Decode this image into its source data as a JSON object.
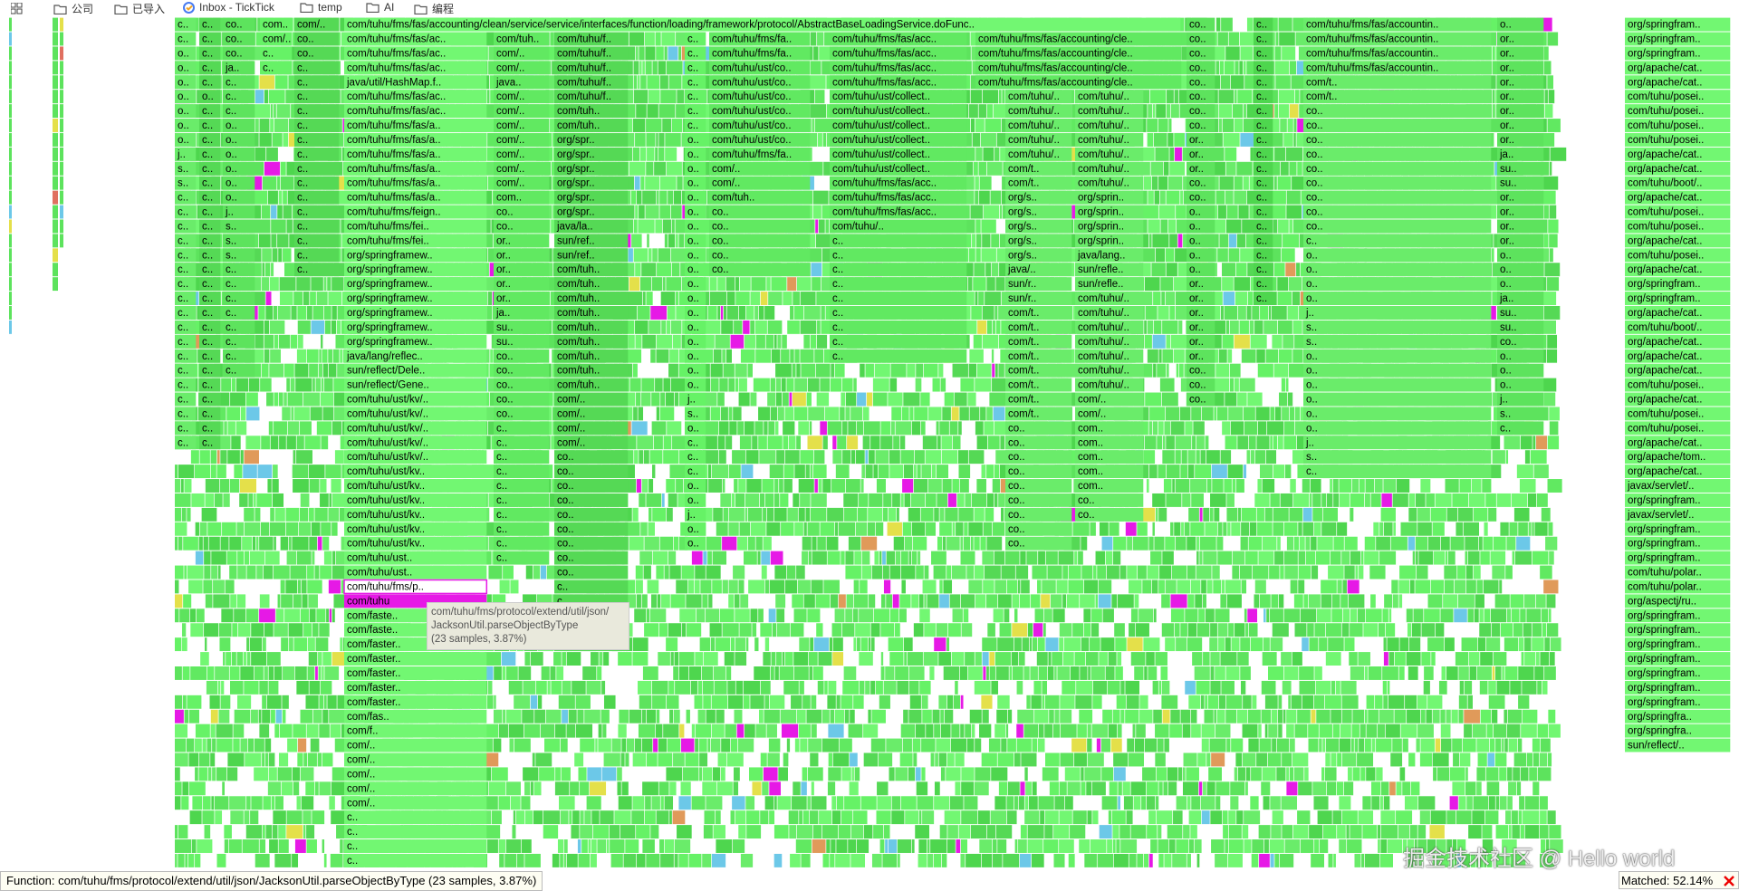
{
  "bookmarks": [
    "公司",
    "已导入",
    "Inbox - TickTick",
    "temp",
    "AI",
    "编程"
  ],
  "flame": {
    "root_frame": "com/tuhu/fms/fas/accounting/clean/service/service/interfaces/function/loading/framework/protocol/AbstractBaseLoadingService.doFunc..",
    "columns": [
      {
        "frames": [
          "c..",
          "c..",
          "o..",
          "o..",
          "o..",
          "o..",
          "o..",
          "o..",
          "o..",
          "j..",
          "s..",
          "s..",
          "c..",
          "c..",
          "c..",
          "c..",
          "c..",
          "c..",
          "c..",
          "c..",
          "c..",
          "c..",
          "c..",
          "c..",
          "c..",
          "c..",
          "c..",
          "c..",
          "c..",
          "c.."
        ]
      },
      {
        "frames": [
          "c..",
          "c..",
          "c..",
          "c..",
          "c..",
          "o..",
          "c..",
          "c..",
          "c..",
          "c..",
          "c..",
          "c..",
          "c..",
          "c..",
          "c..",
          "c..",
          "c..",
          "c..",
          "c..",
          "c..",
          "c..",
          "c..",
          "c..",
          "c..",
          "c..",
          "c..",
          "c..",
          "c..",
          "c..",
          "c.."
        ]
      },
      {
        "frames": [
          "co..",
          "co..",
          "co..",
          "ja..",
          "c..",
          "c..",
          "c..",
          "o..",
          "o..",
          "o..",
          "o..",
          "o..",
          "o..",
          "j..",
          "s..",
          "s..",
          "s..",
          "c..",
          "c..",
          "c..",
          "c..",
          "c..",
          "c..",
          "c..",
          "c.."
        ]
      },
      {
        "frames": [
          "com..",
          "com/..",
          "c..",
          "c.."
        ]
      },
      {
        "frames": [
          "com/..",
          "co..",
          "co..",
          "c..",
          "c..",
          "c..",
          "c..",
          "c..",
          "c..",
          "c..",
          "c..",
          "c..",
          "c..",
          "c..",
          "c..",
          "c..",
          "c..",
          "c.."
        ]
      },
      {
        "frames": [
          "com/tuhu/fms/fas/ac..",
          "com/tuhu/fms/fas/ac..",
          "com/tuhu/fms/fas/ac..",
          "java/util/HashMap.f..",
          "com/tuhu/fms/fas/ac..",
          "com/tuhu/fms/fas/ac..",
          "com/tuhu/fms/fas/a..",
          "com/tuhu/fms/fas/a..",
          "com/tuhu/fms/fas/a..",
          "com/tuhu/fms/fas/a..",
          "com/tuhu/fms/fas/a..",
          "com/tuhu/fms/fas/a..",
          "com/tuhu/fms/feign..",
          "com/tuhu/fms/fei..",
          "com/tuhu/fms/fei..",
          "org/springframew..",
          "org/springframew..",
          "org/springframew..",
          "org/springframew..",
          "org/springframew..",
          "org/springframew..",
          "org/springframew..",
          "java/lang/reflec..",
          "sun/reflect/Dele..",
          "sun/reflect/Gene..",
          "com/tuhu/ust/kv/..",
          "com/tuhu/ust/kv/..",
          "com/tuhu/ust/kv/..",
          "com/tuhu/ust/kv/..",
          "com/tuhu/ust/kv/..",
          "com/tuhu/ust/kv..",
          "com/tuhu/ust/kv..",
          "com/tuhu/ust/kv..",
          "com/tuhu/ust/kv..",
          "com/tuhu/ust/kv..",
          "com/tuhu/ust/kv..",
          "com/tuhu/ust..",
          "com/tuhu/ust..",
          "com/tuhu/fms/p..",
          "com/tuhu",
          "com/faste..",
          "com/faste..",
          "com/faster..",
          "com/faster..",
          "com/faster..",
          "com/faster..",
          "com/faster..",
          "com/fas..",
          "com/f..",
          "com/..",
          "com/..",
          "com/..",
          "com/..",
          "com/..",
          "c..",
          "c..",
          "c..",
          "c.."
        ]
      },
      {
        "frames": [
          "com/tuh..",
          "com/..",
          "com/..",
          "java..",
          "com/..",
          "com/..",
          "com/..",
          "com/..",
          "com/..",
          "com/..",
          "com/..",
          "com..",
          "co..",
          "co..",
          "or..",
          "or..",
          "or..",
          "or..",
          "or..",
          "ja..",
          "su..",
          "su..",
          "co..",
          "co..",
          "co..",
          "co..",
          "co..",
          "c..",
          "c..",
          "c..",
          "c..",
          "c..",
          "c..",
          "c..",
          "c..",
          "c..",
          "c.."
        ]
      },
      {
        "frames": [
          "com/tuhu/f..",
          "com/tuhu/f..",
          "com/tuhu/f..",
          "com/tuhu/f..",
          "com/tuhu/f..",
          "com/tuh..",
          "com/tuh..",
          "org/spr..",
          "org/spr..",
          "org/spr..",
          "org/spr..",
          "org/spr..",
          "org/spr..",
          "java/la..",
          "sun/ref..",
          "sun/ref..",
          "com/tuh..",
          "com/tuh..",
          "com/tuh..",
          "com/tuh..",
          "com/tuh..",
          "com/tuh..",
          "com/tuh..",
          "com/tuh..",
          "com/tuh..",
          "com/..",
          "com/..",
          "com/..",
          "com/..",
          "co..",
          "co..",
          "co..",
          "co..",
          "co..",
          "co..",
          "co..",
          "co..",
          "co..",
          "c..",
          "c..",
          "c..",
          "c..",
          "c.."
        ]
      },
      {
        "frames": [
          "c..",
          "c..",
          "c..",
          "c..",
          "c..",
          "c..",
          "c..",
          "o..",
          "o..",
          "o..",
          "o..",
          "o..",
          "o..",
          "o..",
          "o..",
          "o..",
          "o..",
          "o..",
          "o..",
          "o..",
          "o..",
          "o..",
          "o..",
          "o..",
          "o..",
          "j..",
          "s..",
          "o..",
          "c..",
          "c..",
          "c..",
          "o..",
          "o..",
          "j..",
          "o..",
          "o.."
        ]
      },
      {
        "frames": [
          "com/tuhu/fms/fa..",
          "com/tuhu/fms/fa..",
          "com/tuhu/ust/co..",
          "com/tuhu/ust/co..",
          "com/tuhu/ust/co..",
          "com/tuhu/ust/co..",
          "com/tuhu/ust/co..",
          "com/tuhu/ust/co..",
          "com/tuhu/fms/fa..",
          "com/..",
          "com/..",
          "com/tuh..",
          "co..",
          "co..",
          "co..",
          "co..",
          "co.."
        ]
      },
      {
        "frames": [
          "com/tuhu/fms/fas/acc..",
          "com/tuhu/fms/fas/acc..",
          "com/tuhu/fms/fas/acc..",
          "com/tuhu/fms/fas/acc..",
          "com/tuhu/ust/collect..",
          "com/tuhu/ust/collect..",
          "com/tuhu/ust/collect..",
          "com/tuhu/ust/collect..",
          "com/tuhu/ust/collect..",
          "com/tuhu/ust/collect..",
          "com/tuhu/fms/fas/acc..",
          "com/tuhu/fms/fas/acc..",
          "com/tuhu/fms/fas/acc..",
          "com/tuhu/..",
          "c..",
          "c..",
          "c..",
          "c..",
          "c..",
          "c..",
          "c..",
          "c..",
          "c.."
        ]
      },
      {
        "frames": [
          "com/tuhu/fms/fas/accounting/cle..",
          "com/tuhu/fms/fas/accounting/cle..",
          "com/tuhu/fms/fas/accounting/cle..",
          "com/tuhu/fms/fas/accounting/cle.."
        ]
      },
      {
        "frames": [
          "com/tuhu/..",
          "com/tuhu/..",
          "com/tuhu/..",
          "com/tuhu/..",
          "com/tuhu/..",
          "com/t..",
          "com/t..",
          "org/s..",
          "org/s..",
          "org/s..",
          "org/s..",
          "org/s..",
          "java/..",
          "sun/r..",
          "sun/r..",
          "com/t..",
          "com/t..",
          "com/t..",
          "com/t..",
          "com/t..",
          "com/t..",
          "com/t..",
          "com/t..",
          "co..",
          "co..",
          "co..",
          "co..",
          "co..",
          "co..",
          "co..",
          "co..",
          "co.."
        ]
      },
      {
        "frames": [
          "com/tuhu/..",
          "com/tuhu/..",
          "com/tuhu/..",
          "com/tuhu/..",
          "com/tuhu/..",
          "com/tuhu/..",
          "com/tuhu/..",
          "org/sprin..",
          "org/sprin..",
          "org/sprin..",
          "org/sprin..",
          "java/lang..",
          "sun/refle..",
          "sun/refle..",
          "com/tuhu/..",
          "com/tuhu/..",
          "com/tuhu/..",
          "com/tuhu/..",
          "com/tuhu/..",
          "com/tuhu/..",
          "com/tuhu/..",
          "com/..",
          "com/..",
          "com..",
          "com..",
          "com..",
          "com..",
          "com..",
          "co..",
          "co.."
        ]
      },
      {
        "frames": [
          "co..",
          "co..",
          "co..",
          "co..",
          "co..",
          "co..",
          "co..",
          "co..",
          "or..",
          "or..",
          "or..",
          "co..",
          "co..",
          "o..",
          "o..",
          "o..",
          "o..",
          "o..",
          "or..",
          "or..",
          "or..",
          "or..",
          "or..",
          "or..",
          "co..",
          "co..",
          "co.."
        ]
      },
      {
        "frames": [
          "c..",
          "c..",
          "c..",
          "c..",
          "c..",
          "c..",
          "c..",
          "c..",
          "c..",
          "c..",
          "c..",
          "c..",
          "c..",
          "c..",
          "c..",
          "c..",
          "c..",
          "c..",
          "c..",
          "c.."
        ]
      },
      {
        "frames": [
          "com/tuhu/fms/fas/accountin..",
          "com/tuhu/fms/fas/accountin..",
          "com/tuhu/fms/fas/accountin..",
          "com/tuhu/fms/fas/accountin..",
          "com/t..",
          "com/t..",
          "co..",
          "co..",
          "co..",
          "co..",
          "co..",
          "co..",
          "co..",
          "co..",
          "co..",
          "c..",
          "o..",
          "o..",
          "o..",
          "o..",
          "j..",
          "s..",
          "s..",
          "o..",
          "o..",
          "o..",
          "o..",
          "o..",
          "o..",
          "j..",
          "s..",
          "c.."
        ]
      },
      {
        "frames": [
          "o..",
          "or..",
          "or..",
          "or..",
          "or..",
          "or..",
          "or..",
          "or..",
          "or..",
          "ja..",
          "su..",
          "su..",
          "or..",
          "or..",
          "or..",
          "or..",
          "o..",
          "o..",
          "o..",
          "ja..",
          "su..",
          "su..",
          "co..",
          "o..",
          "o..",
          "o..",
          "j..",
          "s..",
          "c.."
        ]
      },
      {
        "frames": [
          "org/springfram..",
          "org/springfram..",
          "org/springfram..",
          "org/apache/cat..",
          "org/apache/cat..",
          "com/tuhu/posei..",
          "com/tuhu/posei..",
          "com/tuhu/posei..",
          "com/tuhu/posei..",
          "org/apache/cat..",
          "org/apache/cat..",
          "com/tuhu/boot/..",
          "org/apache/cat..",
          "com/tuhu/posei..",
          "com/tuhu/posei..",
          "org/apache/cat..",
          "com/tuhu/posei..",
          "org/apache/cat..",
          "org/springfram..",
          "org/springfram..",
          "org/apache/cat..",
          "com/tuhu/boot/..",
          "org/apache/cat..",
          "org/apache/cat..",
          "org/apache/cat..",
          "com/tuhu/posei..",
          "org/apache/cat..",
          "com/tuhu/posei..",
          "com/tuhu/posei..",
          "org/apache/cat..",
          "org/apache/tom..",
          "org/apache/cat..",
          "javax/servlet/..",
          "org/springfram..",
          "javax/servlet/..",
          "org/springfram..",
          "org/springfram..",
          "org/springfram..",
          "com/tuhu/polar..",
          "com/tuhu/polar..",
          "org/aspectj/ru..",
          "org/springfram..",
          "org/springfram..",
          "org/springfram..",
          "org/springfram..",
          "org/springfram..",
          "org/springfram..",
          "org/springfram..",
          "org/springfra..",
          "org/springfra..",
          "sun/reflect/.."
        ]
      }
    ]
  },
  "tooltip": {
    "lines": [
      "com/tuhu/fms/protocol/extend/util/json/",
      "JacksonUtil.parseObjectByType",
      "(23 samples, 3.87%)"
    ]
  },
  "status": {
    "function": "Function: com/tuhu/fms/protocol/extend/util/json/JacksonUtil.parseObjectByType (23 samples, 3.87%)",
    "matched": "Matched: 52.14%"
  },
  "watermark": "掘金技术社区 @ Hello world"
}
